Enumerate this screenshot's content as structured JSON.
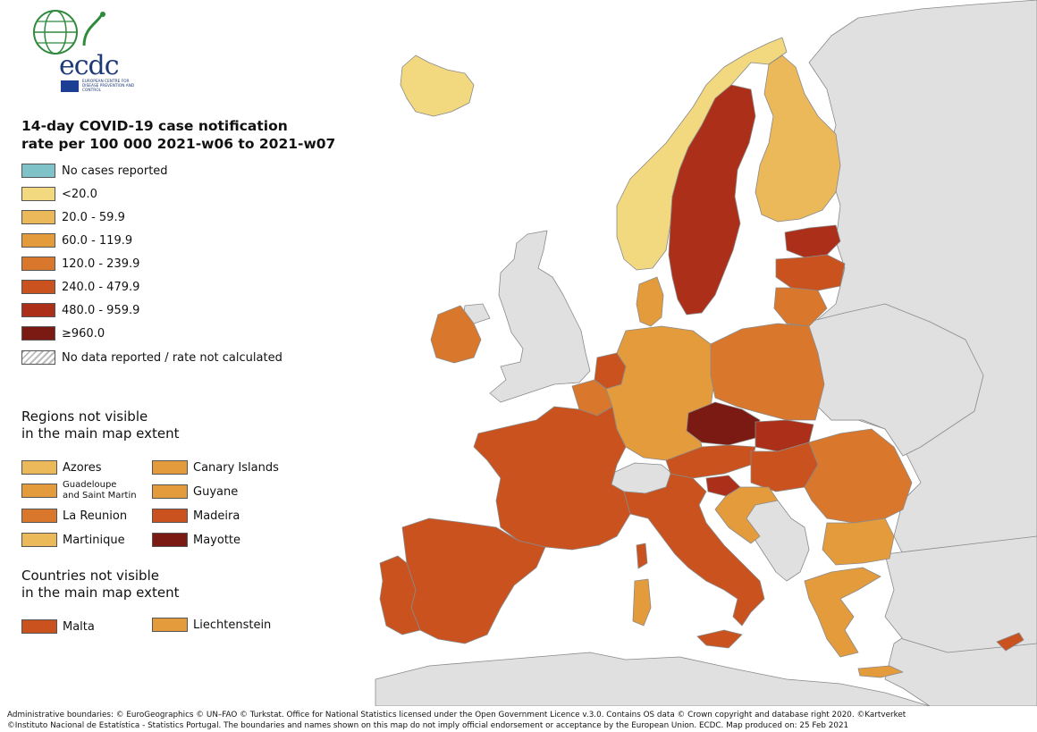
{
  "logo": {
    "text": "ecdc",
    "subtitle": "EUROPEAN CENTRE FOR DISEASE PREVENTION AND CONTROL"
  },
  "legend": {
    "title_line1": "14-day COVID-19 case notification",
    "title_line2": "rate per 100 000 2021-w06 to 2021-w07",
    "items": [
      {
        "label": "No cases reported",
        "color": "#7fc3c8"
      },
      {
        "label": "<20.0",
        "color": "#f2d87e"
      },
      {
        "label": "20.0 - 59.9",
        "color": "#ebb85a"
      },
      {
        "label": "60.0 - 119.9",
        "color": "#e39b3c"
      },
      {
        "label": "120.0 - 239.9",
        "color": "#d9772d"
      },
      {
        "label": "240.0 - 479.9",
        "color": "#c9521f"
      },
      {
        "label": "480.0 - 959.9",
        "color": "#ac3019"
      },
      {
        "label": "≥960.0",
        "color": "#7a1a12"
      },
      {
        "label": "No data reported / rate not calculated",
        "color": "hatch"
      }
    ]
  },
  "regions_section": {
    "title_line1": "Regions not visible",
    "title_line2": "in the main map extent",
    "items": [
      {
        "label": "Azores",
        "color": "#ebb85a"
      },
      {
        "label": "Canary Islands",
        "color": "#e39b3c"
      },
      {
        "label_line1": "Guadeloupe",
        "label_line2": "and Saint Martin",
        "color": "#e39b3c"
      },
      {
        "label": "Guyane",
        "color": "#e39b3c"
      },
      {
        "label": "La Reunion",
        "color": "#d9772d"
      },
      {
        "label": "Madeira",
        "color": "#c9521f"
      },
      {
        "label": "Martinique",
        "color": "#ebb85a"
      },
      {
        "label": "Mayotte",
        "color": "#7a1a12"
      }
    ]
  },
  "countries_section": {
    "title_line1": "Countries not visible",
    "title_line2": "in the main map extent",
    "items": [
      {
        "label": "Malta",
        "color": "#c9521f"
      },
      {
        "label": "Liechtenstein",
        "color": "#e39b3c"
      }
    ]
  },
  "footer": {
    "line1": "Administrative boundaries: © EuroGeographics © UN–FAO © Turkstat. Office for National Statistics licensed under the Open Government Licence v.3.0. Contains OS data © Crown copyright and database right 2020. ©Kartverket",
    "line2": "©Instituto Nacional de Estatística - Statistics Portugal. The boundaries and names shown on this map do not imply official endorsement or acceptance by the European Union. ECDC. Map produced on: 25 Feb 2021"
  },
  "map": {
    "sea_color": "#ffffff",
    "non_eu_color": "#e0e0e0",
    "border_color": "#8a8a8a",
    "countries": [
      {
        "name": "Iceland",
        "class": "<20.0"
      },
      {
        "name": "Norway",
        "class": "<20.0"
      },
      {
        "name": "Finland",
        "class": "20.0 - 59.9"
      },
      {
        "name": "Sweden",
        "class": "480.0 - 959.9"
      },
      {
        "name": "Estonia",
        "class": "480.0 - 959.9"
      },
      {
        "name": "Latvia",
        "class": "240.0 - 479.9"
      },
      {
        "name": "Lithuania",
        "class": "120.0 - 239.9"
      },
      {
        "name": "Denmark",
        "class": "60.0 - 119.9"
      },
      {
        "name": "Ireland",
        "class": "120.0 - 239.9"
      },
      {
        "name": "Netherlands",
        "class": "240.0 - 479.9"
      },
      {
        "name": "Belgium",
        "class": "120.0 - 239.9"
      },
      {
        "name": "Luxembourg",
        "class": "120.0 - 239.9"
      },
      {
        "name": "Germany",
        "class": "60.0 - 119.9"
      },
      {
        "name": "Poland",
        "class": "120.0 - 239.9"
      },
      {
        "name": "Czechia",
        "class": "≥960.0"
      },
      {
        "name": "Slovakia",
        "class": "480.0 - 959.9"
      },
      {
        "name": "Austria",
        "class": "240.0 - 479.9"
      },
      {
        "name": "Hungary",
        "class": "240.0 - 479.9"
      },
      {
        "name": "Slovenia",
        "class": "480.0 - 959.9"
      },
      {
        "name": "Croatia",
        "class": "60.0 - 119.9"
      },
      {
        "name": "Romania",
        "class": "120.0 - 239.9"
      },
      {
        "name": "Bulgaria",
        "class": "60.0 - 119.9"
      },
      {
        "name": "Greece",
        "class": "60.0 - 119.9"
      },
      {
        "name": "France",
        "class": "240.0 - 479.9"
      },
      {
        "name": "Spain",
        "class": "240.0 - 479.9"
      },
      {
        "name": "Portugal",
        "class": "240.0 - 479.9"
      },
      {
        "name": "Italy",
        "class": "240.0 - 479.9"
      },
      {
        "name": "Cyprus",
        "class": "240.0 - 479.9"
      },
      {
        "name": "Switzerland",
        "class": "No data reported / rate not calculated"
      }
    ]
  }
}
